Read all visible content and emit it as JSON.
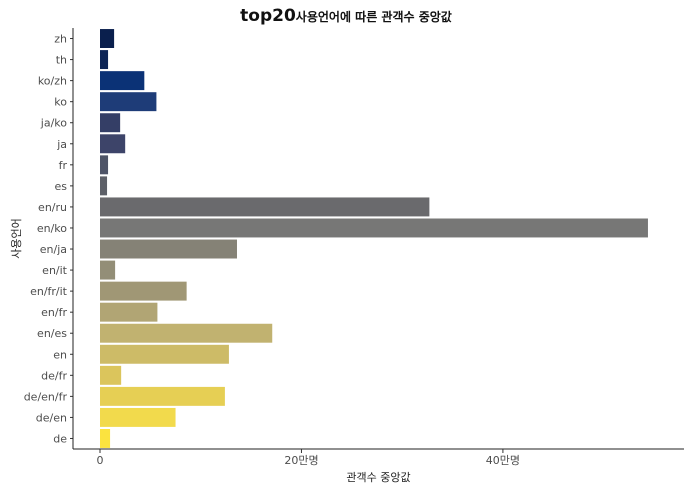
{
  "chart_data": {
    "type": "bar",
    "orientation": "horizontal",
    "title_main": "top20",
    "title_sub": "사용언어에 따른 관객수 중앙값",
    "xlabel": "관객수 중앙값",
    "ylabel": "사용언어",
    "xlim": [
      0,
      550000
    ],
    "x_ticks": [
      {
        "value": 0,
        "label": "0"
      },
      {
        "value": 200000,
        "label": "20만명"
      },
      {
        "value": 400000,
        "label": "40만명"
      }
    ],
    "categories": [
      "zh",
      "th",
      "ko/zh",
      "ko",
      "ja/ko",
      "ja",
      "fr",
      "es",
      "en/ru",
      "en/ko",
      "en/ja",
      "en/it",
      "en/fr/it",
      "en/fr",
      "en/es",
      "en",
      "de/fr",
      "de/en/fr",
      "de/en",
      "de"
    ],
    "values": [
      14000,
      8000,
      44000,
      56000,
      20000,
      25000,
      8000,
      7000,
      327000,
      544000,
      136000,
      15000,
      86000,
      57000,
      171000,
      128000,
      21000,
      124000,
      75000,
      10000
    ],
    "colors": [
      "#0a1f4d",
      "#0d2455",
      "#0b3276",
      "#1e3c78",
      "#343e66",
      "#3d4469",
      "#4e5467",
      "#5d6068",
      "#6a6a6d",
      "#777776",
      "#858276",
      "#938e77",
      "#a09775",
      "#b1a574",
      "#c1b270",
      "#cdbb67",
      "#dbc55c",
      "#e6cf54",
      "#f2da4c",
      "#fbe33f"
    ],
    "grid": false,
    "legend": "none"
  }
}
